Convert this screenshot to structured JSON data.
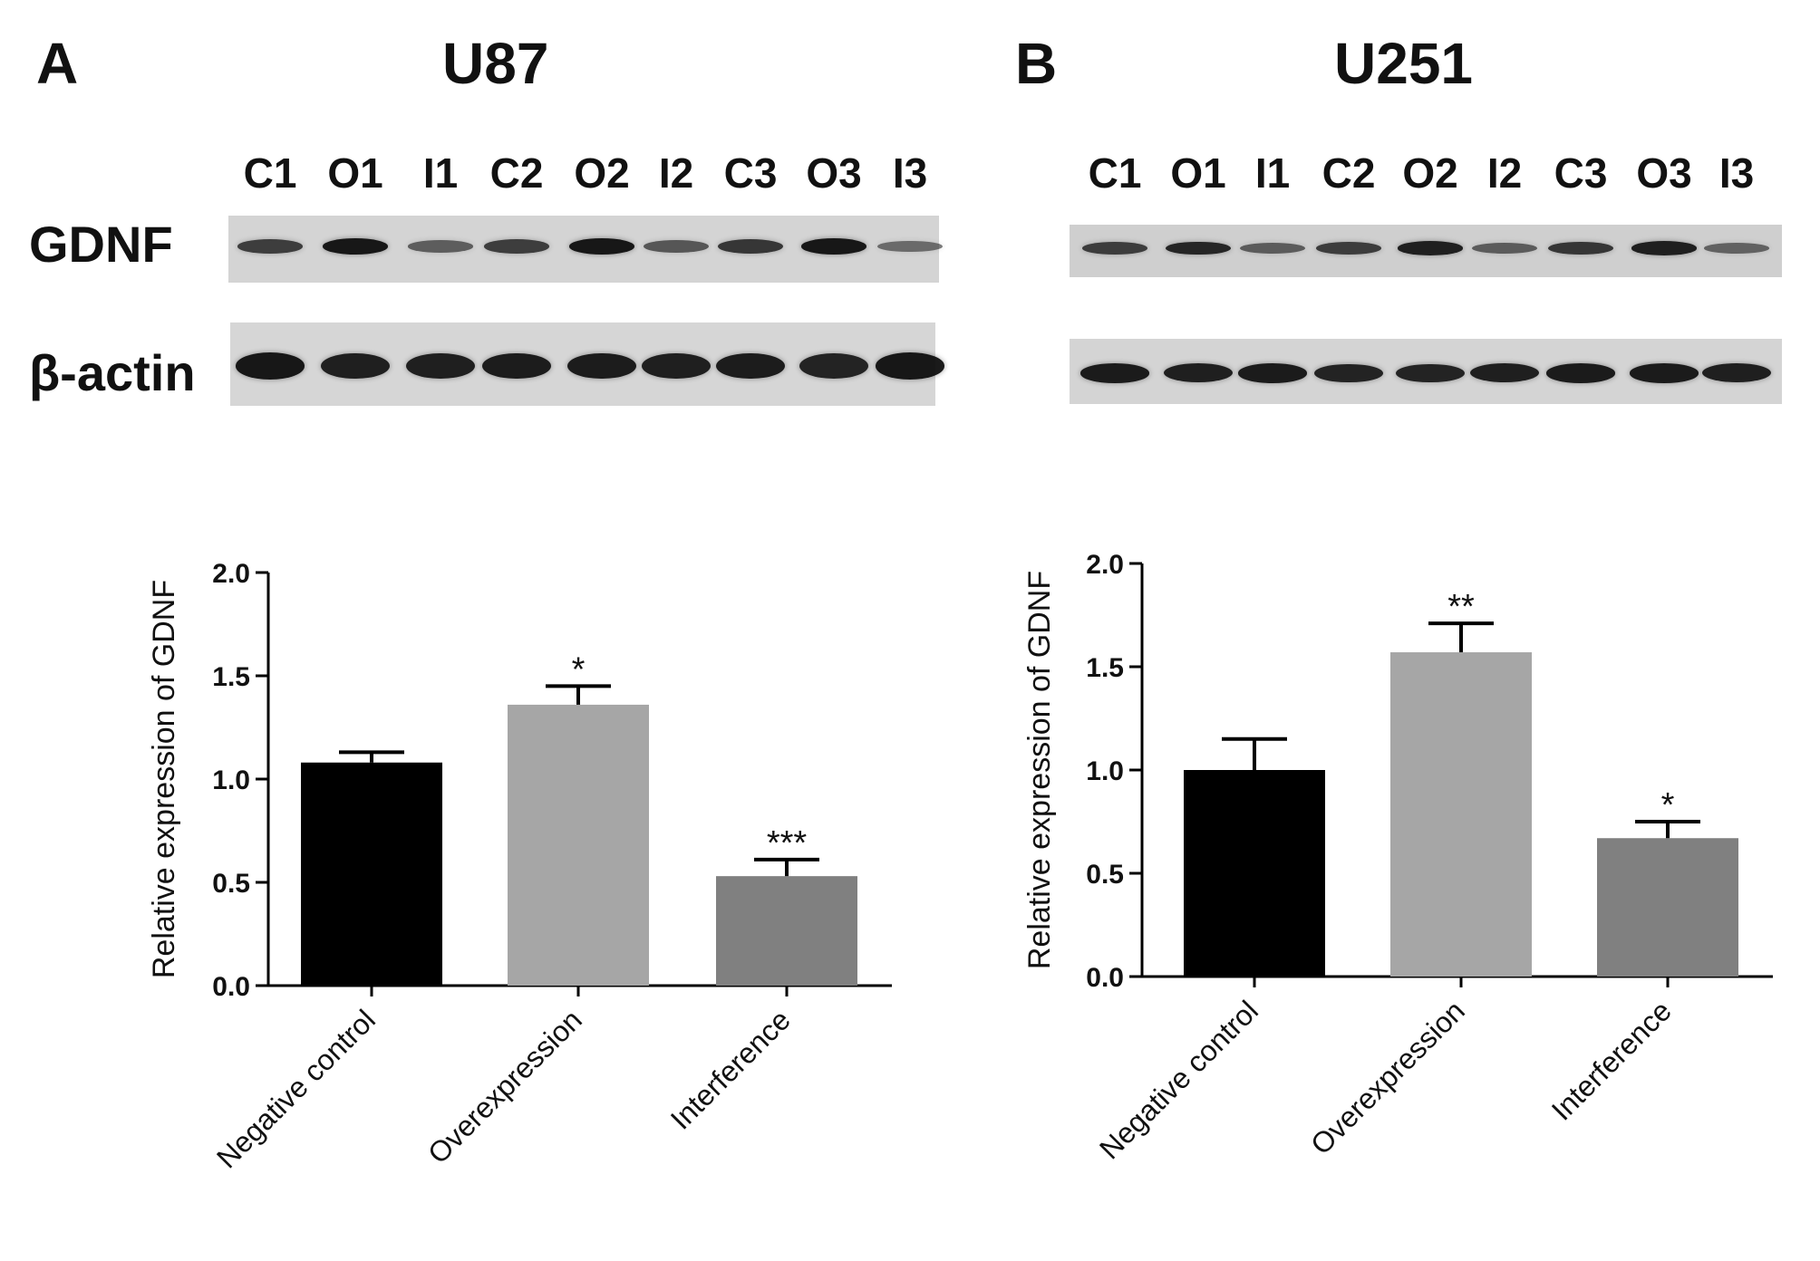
{
  "panels": [
    {
      "label": "A",
      "cell_line": "U87",
      "lanes": [
        "C1",
        "O1",
        "I1",
        "C2",
        "O2",
        "I2",
        "C3",
        "O3",
        "I3"
      ],
      "blot_rows": [
        "GDNF",
        "β-actin"
      ],
      "band_intensity": {
        "GDNF": [
          0.7,
          0.95,
          0.45,
          0.7,
          0.95,
          0.5,
          0.75,
          0.95,
          0.35
        ],
        "beta_actin": [
          0.95,
          0.9,
          0.9,
          0.92,
          0.92,
          0.9,
          0.92,
          0.88,
          0.95
        ]
      }
    },
    {
      "label": "B",
      "cell_line": "U251",
      "lanes": [
        "C1",
        "O1",
        "I1",
        "C2",
        "O2",
        "I2",
        "C3",
        "O3",
        "I3"
      ],
      "blot_rows": [
        "GDNF",
        ""
      ],
      "band_intensity": {
        "GDNF": [
          0.7,
          0.85,
          0.45,
          0.7,
          0.9,
          0.45,
          0.75,
          0.9,
          0.4
        ],
        "beta_actin": [
          0.92,
          0.9,
          0.92,
          0.88,
          0.88,
          0.9,
          0.92,
          0.92,
          0.9
        ]
      }
    }
  ],
  "colors": {
    "negative_control": "#000000",
    "overexpression": "#a6a6a6",
    "interference": "#808080"
  },
  "chart_data": [
    {
      "type": "bar",
      "categories": [
        "Negative control",
        "Overexpression",
        "Interference"
      ],
      "values": [
        1.08,
        1.36,
        0.53
      ],
      "errors": [
        0.05,
        0.09,
        0.08
      ],
      "significance": [
        "",
        "*",
        "***"
      ],
      "ylabel": "Relative expression of GDNF",
      "ylim": [
        0,
        2.0
      ],
      "yticks": [
        "0.0",
        "0.5",
        "1.0",
        "1.5",
        "2.0"
      ],
      "grid": false
    },
    {
      "type": "bar",
      "categories": [
        "Negative control",
        "Overexpression",
        "Interference"
      ],
      "values": [
        1.0,
        1.57,
        0.67
      ],
      "errors": [
        0.15,
        0.14,
        0.08
      ],
      "significance": [
        "",
        "**",
        "*"
      ],
      "ylabel": "Relative expression of GDNF",
      "ylim": [
        0,
        2.0
      ],
      "yticks": [
        "0.0",
        "0.5",
        "1.0",
        "1.5",
        "2.0"
      ],
      "grid": false
    }
  ]
}
